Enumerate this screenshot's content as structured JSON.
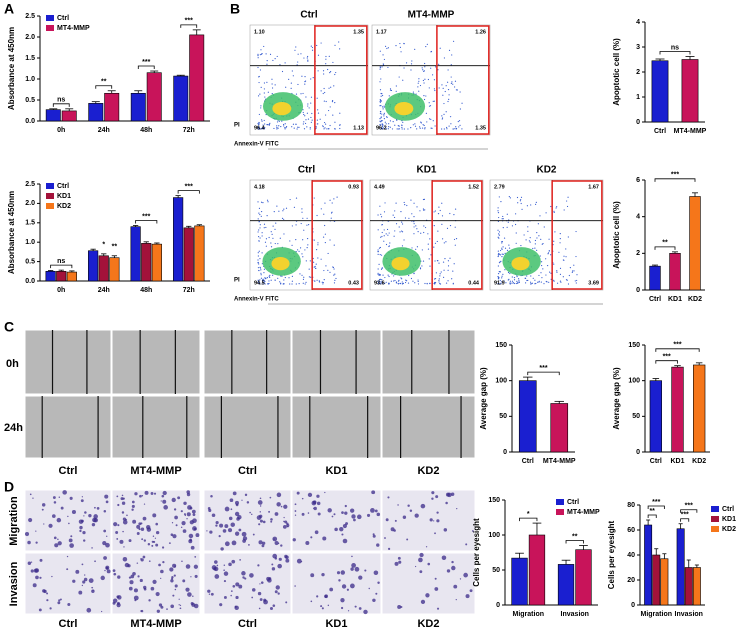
{
  "panels": [
    "A",
    "B",
    "C",
    "D"
  ],
  "chart_data": [
    {
      "type": "bar",
      "ylabel": "Absorbance at 450nm",
      "categories": [
        "0h",
        "24h",
        "48h",
        "72h"
      ],
      "series": [
        {
          "name": "Ctrl",
          "color": "#1a1fd0",
          "values": [
            0.27,
            0.42,
            0.66,
            1.07
          ],
          "errors": [
            0.02,
            0.04,
            0.06,
            0.02
          ]
        },
        {
          "name": "MT4-MMP",
          "color": "#c8145a",
          "values": [
            0.24,
            0.66,
            1.15,
            2.05
          ],
          "errors": [
            0.05,
            0.06,
            0.04,
            0.12
          ]
        }
      ],
      "ylim": [
        0,
        2.5
      ],
      "yticks": [
        {
          "value": 0,
          "label": "0.0"
        },
        0.5,
        {
          "value": 1,
          "label": "1.0"
        },
        1.5,
        {
          "value": 2,
          "label": "2.0"
        },
        2.5
      ],
      "legend": "upper left",
      "annotations": [
        "ns",
        "**",
        "***",
        "***"
      ]
    },
    {
      "type": "bar",
      "ylabel": "Absorbance at 450nm",
      "categories": [
        "0h",
        "24h",
        "48h",
        "72h"
      ],
      "series": [
        {
          "name": "Ctrl",
          "color": "#1a1fd0",
          "values": [
            0.25,
            0.78,
            1.4,
            2.15
          ],
          "errors": [
            0.02,
            0.04,
            0.03,
            0.05
          ]
        },
        {
          "name": "KD1",
          "color": "#a3123a",
          "values": [
            0.25,
            0.65,
            0.97,
            1.37
          ],
          "errors": [
            0.03,
            0.05,
            0.04,
            0.04
          ]
        },
        {
          "name": "KD2",
          "color": "#f5761a",
          "values": [
            0.23,
            0.6,
            0.95,
            1.42
          ],
          "errors": [
            0.03,
            0.05,
            0.03,
            0.03
          ]
        }
      ],
      "ylim": [
        0,
        2.5
      ],
      "yticks": [
        {
          "value": 0,
          "label": "0.0"
        },
        0.5,
        {
          "value": 1,
          "label": "1.0"
        },
        1.5,
        {
          "value": 2,
          "label": "2.0"
        },
        2.5
      ],
      "legend": "upper left",
      "annotations": [
        "ns",
        "*",
        "**",
        "***",
        "***"
      ]
    },
    {
      "type": "bar",
      "ylabel": "Apoptotic cell (%)",
      "categories": [
        "Ctrl",
        "MT4-MMP"
      ],
      "values": [
        2.45,
        2.5
      ],
      "errors": [
        0.07,
        0.12
      ],
      "colors": [
        "#1a1fd0",
        "#c8145a"
      ],
      "ylim": [
        0,
        4
      ],
      "yticks": [
        0,
        1,
        2,
        3,
        4
      ],
      "annotations": [
        "ns"
      ]
    },
    {
      "type": "bar",
      "ylabel": "Apoptotic cell (%)",
      "categories": [
        "Ctrl",
        "KD1",
        "KD2"
      ],
      "values": [
        1.3,
        2.0,
        5.1
      ],
      "errors": [
        0.06,
        0.08,
        0.2
      ],
      "colors": [
        "#1a1fd0",
        "#c8145a",
        "#f5761a"
      ],
      "ylim": [
        0,
        6
      ],
      "yticks": [
        0,
        2,
        4,
        6
      ],
      "annotations": [
        "**",
        "***"
      ]
    },
    {
      "type": "bar",
      "ylabel": "Average gap (%)",
      "categories": [
        "Ctrl",
        "MT4-MMP"
      ],
      "values": [
        100,
        68
      ],
      "errors": [
        5,
        3
      ],
      "colors": [
        "#1a1fd0",
        "#c8145a"
      ],
      "ylim": [
        0,
        150
      ],
      "yticks": [
        0,
        50,
        100,
        150
      ],
      "annotations": [
        "***"
      ]
    },
    {
      "type": "bar",
      "ylabel": "Average gap (%)",
      "categories": [
        "Ctrl",
        "KD1",
        "KD2"
      ],
      "values": [
        100,
        119,
        122
      ],
      "errors": [
        3,
        2,
        3
      ],
      "colors": [
        "#1a1fd0",
        "#c8145a",
        "#f5761a"
      ],
      "ylim": [
        0,
        150
      ],
      "yticks": [
        0,
        50,
        100,
        150
      ],
      "annotations": [
        "***",
        "***"
      ]
    },
    {
      "type": "bar",
      "ylabel": "Cells per eyesight",
      "categories": [
        "Migration",
        "Invasion"
      ],
      "series": [
        {
          "name": "Ctrl",
          "color": "#1a1fd0",
          "values": [
            67,
            58
          ],
          "errors": [
            7,
            6
          ]
        },
        {
          "name": "MT4-MMP",
          "color": "#c8145a",
          "values": [
            100,
            79
          ],
          "errors": [
            17,
            6
          ]
        }
      ],
      "ylim": [
        0,
        150
      ],
      "yticks": [
        0,
        50,
        100,
        150
      ],
      "legend": "upper right",
      "annotations": [
        "*",
        "**"
      ]
    },
    {
      "type": "bar",
      "ylabel": "Cells per eyesight",
      "categories": [
        "Migration",
        "Invasion"
      ],
      "series": [
        {
          "name": "Ctrl",
          "color": "#1a1fd0",
          "values": [
            64,
            61
          ],
          "errors": [
            4,
            4
          ]
        },
        {
          "name": "KD1",
          "color": "#a3123a",
          "values": [
            40,
            30
          ],
          "errors": [
            5,
            6
          ]
        },
        {
          "name": "KD2",
          "color": "#f5761a",
          "values": [
            37,
            30
          ],
          "errors": [
            4,
            2
          ]
        }
      ],
      "ylim": [
        0,
        80
      ],
      "yticks": [
        0,
        20,
        40,
        60,
        80
      ],
      "legend": "right",
      "annotations": [
        "**",
        "***",
        "***",
        "***"
      ]
    }
  ],
  "flow": {
    "y_label": "PI",
    "x_label": "Annexin-V  FITC",
    "plots": [
      {
        "title": "Ctrl",
        "q": [
          "1.10",
          "1.35",
          "96.4",
          "1.13"
        ]
      },
      {
        "title": "MT4-MMP",
        "q": [
          "1.17",
          "1.26",
          "96.2",
          "1.35"
        ]
      },
      {
        "title": "Ctrl",
        "q": [
          "4.18",
          "0.93",
          "94.5",
          "0.43"
        ]
      },
      {
        "title": "KD1",
        "q": [
          "4.49",
          "1.52",
          "93.6",
          "0.44"
        ]
      },
      {
        "title": "KD2",
        "q": [
          "2.79",
          "1.67",
          "91.9",
          "3.69"
        ]
      }
    ]
  },
  "scratch": {
    "rows": [
      "0h",
      "24h"
    ],
    "labels": [
      "Ctrl",
      "MT4-MMP",
      "Ctrl",
      "KD1",
      "KD2"
    ]
  },
  "transwell": {
    "rows": [
      "Migration",
      "Invasion"
    ],
    "labels": [
      "Ctrl",
      "MT4-MMP",
      "Ctrl",
      "KD1",
      "KD2"
    ]
  }
}
